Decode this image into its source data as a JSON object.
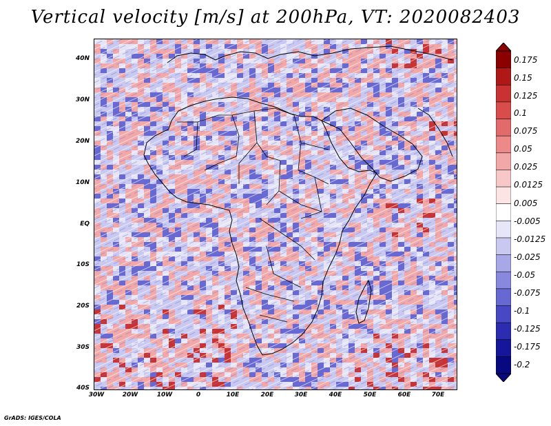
{
  "title": "Vertical velocity [m/s] at 200hPa, VT: 2020082403",
  "footer": "GrADS: IGES/COLA",
  "y_axis_labels": [
    "40N",
    "30N",
    "20N",
    "10N",
    "EQ",
    "10S",
    "20S",
    "30S",
    "40S"
  ],
  "x_axis_labels": [
    "30W",
    "20W",
    "10W",
    "0",
    "10E",
    "20E",
    "30E",
    "40E",
    "50E",
    "60E",
    "70E"
  ],
  "colorbar": {
    "labels": [
      "0.175",
      "0.15",
      "0.125",
      "0.1",
      "0.075",
      "0.05",
      "0.025",
      "0.0125",
      "0.005",
      "-0.005",
      "-0.0125",
      "-0.025",
      "-0.05",
      "-0.075",
      "-0.1",
      "-0.125",
      "-0.175",
      "-0.2"
    ],
    "colors": [
      "#8b0000",
      "#b01818",
      "#c83232",
      "#d94c4c",
      "#e36a6a",
      "#ec8a8a",
      "#f2a8a8",
      "#f8c8c8",
      "#fce4e4",
      "#ffffff",
      "#e6e6f8",
      "#c8c8f0",
      "#a8a8e8",
      "#8888de",
      "#6868d2",
      "#4848c4",
      "#2c2cb0",
      "#16169a",
      "#080880"
    ]
  },
  "map_colors": {
    "positive_strong": "#c83232",
    "positive_weak": "#f2a8a8",
    "negative_weak": "#c8c8f0",
    "negative_strong": "#6868d2",
    "coastline": "#000000"
  }
}
